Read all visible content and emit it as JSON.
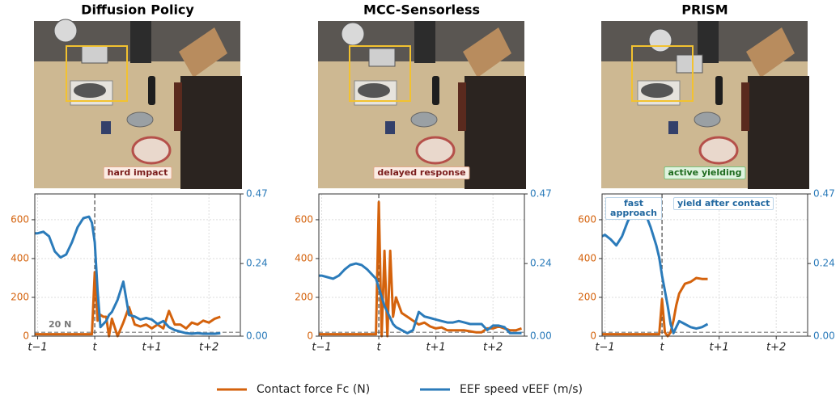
{
  "chart_data": [
    {
      "type": "line",
      "title": "Diffusion Policy",
      "image_label": "hard impact",
      "image_label_color": "#7a1c1c",
      "x": [
        -1.05,
        -1.0,
        -0.9,
        -0.8,
        -0.7,
        -0.6,
        -0.5,
        -0.4,
        -0.3,
        -0.2,
        -0.1,
        -0.05,
        0,
        0.05,
        0.1,
        0.15,
        0.2,
        0.25,
        0.3,
        0.4,
        0.5,
        0.6,
        0.7,
        0.8,
        0.9,
        1.0,
        1.1,
        1.2,
        1.3,
        1.4,
        1.5,
        1.6,
        1.7,
        1.8,
        1.9,
        2.0,
        2.1,
        2.2,
        2.3,
        2.4,
        2.5
      ],
      "series": [
        {
          "name": "Contact force Fc (N)",
          "color": "#d4620c",
          "axis": "y",
          "values": [
            10,
            10,
            10,
            10,
            10,
            10,
            10,
            10,
            10,
            10,
            10,
            10,
            330,
            80,
            110,
            100,
            100,
            0,
            90,
            0,
            70,
            150,
            60,
            50,
            60,
            40,
            60,
            40,
            130,
            60,
            60,
            40,
            70,
            60,
            80,
            70,
            90,
            100,
            null,
            null,
            null
          ]
        },
        {
          "name": "EEF speed vEEF (m/s)",
          "color": "#2b7bba",
          "axis": "y2",
          "values": [
            0.34,
            0.34,
            0.345,
            0.33,
            0.28,
            0.26,
            0.27,
            0.31,
            0.36,
            0.39,
            0.395,
            0.375,
            0.31,
            0.15,
            0.03,
            0.04,
            0.05,
            0.07,
            0.08,
            0.12,
            0.18,
            0.07,
            0.065,
            0.055,
            0.06,
            0.055,
            0.04,
            0.05,
            0.03,
            0.02,
            0.015,
            0.01,
            0.008,
            0.01,
            0.008,
            0.008,
            0.008,
            0.01,
            null,
            null,
            null
          ]
        }
      ],
      "threshold": 20,
      "threshold_label": "20 N",
      "event_x": 0,
      "xlim": [
        -1.05,
        2.55
      ],
      "xticks": [
        {
          "value": -1,
          "label": "t−1"
        },
        {
          "value": 0,
          "label": "t"
        },
        {
          "value": 1,
          "label": "t+1"
        },
        {
          "value": 2,
          "label": "t+2"
        }
      ],
      "ylim": [
        0,
        733
      ],
      "yticks": [
        0,
        200,
        400,
        600
      ],
      "y2lim": [
        0,
        0.47
      ],
      "y2ticks": [
        {
          "value": 0,
          "label": "0.00"
        },
        0.24,
        0.47
      ],
      "grid": true
    },
    {
      "type": "line",
      "title": "MCC-Sensorless",
      "image_label": "delayed response",
      "image_label_color": "#7a1c1c",
      "x": [
        -1.05,
        -1.0,
        -0.9,
        -0.8,
        -0.7,
        -0.6,
        -0.5,
        -0.4,
        -0.3,
        -0.2,
        -0.1,
        -0.05,
        0,
        0.05,
        0.1,
        0.15,
        0.2,
        0.25,
        0.3,
        0.4,
        0.5,
        0.6,
        0.7,
        0.8,
        0.9,
        1.0,
        1.1,
        1.2,
        1.3,
        1.4,
        1.5,
        1.6,
        1.7,
        1.8,
        1.9,
        2.0,
        2.1,
        2.2,
        2.3,
        2.4,
        2.5
      ],
      "series": [
        {
          "color": "#d4620c",
          "axis": "y",
          "values": [
            10,
            10,
            10,
            10,
            10,
            10,
            10,
            10,
            10,
            10,
            10,
            10,
            690,
            0,
            440,
            0,
            440,
            100,
            200,
            120,
            100,
            80,
            60,
            70,
            50,
            40,
            45,
            30,
            30,
            30,
            30,
            25,
            20,
            20,
            40,
            40,
            50,
            40,
            30,
            30,
            40
          ]
        },
        {
          "color": "#2b7bba",
          "axis": "y2",
          "values": [
            0.2,
            0.2,
            0.195,
            0.19,
            0.2,
            0.22,
            0.235,
            0.24,
            0.235,
            0.22,
            0.2,
            0.19,
            0.16,
            0.13,
            0.1,
            0.08,
            0.06,
            0.04,
            0.03,
            0.02,
            0.01,
            0.02,
            0.08,
            0.065,
            0.06,
            0.055,
            0.05,
            0.045,
            0.045,
            0.05,
            0.045,
            0.04,
            0.04,
            0.04,
            0.02,
            0.035,
            0.035,
            0.03,
            0.01,
            0.01,
            0.01
          ]
        }
      ],
      "threshold": 20,
      "event_x": 0,
      "xlim": [
        -1.05,
        2.55
      ],
      "xticks": [
        {
          "value": -1,
          "label": "t−1"
        },
        {
          "value": 0,
          "label": "t"
        },
        {
          "value": 1,
          "label": "t+1"
        },
        {
          "value": 2,
          "label": "t+2"
        }
      ],
      "ylim": [
        0,
        733
      ],
      "yticks": [
        0,
        200,
        400,
        600
      ],
      "y2lim": [
        0,
        0.47
      ],
      "y2ticks": [
        {
          "value": 0,
          "label": "0.00"
        },
        0.24,
        0.47
      ],
      "grid": true
    },
    {
      "type": "line",
      "title": "PRISM",
      "image_label": "active yielding",
      "image_label_color": "#1e6b1e",
      "annotations": [
        "fast approach",
        "yield after contact"
      ],
      "x": [
        -1.05,
        -1.0,
        -0.9,
        -0.8,
        -0.7,
        -0.6,
        -0.5,
        -0.4,
        -0.3,
        -0.2,
        -0.1,
        -0.05,
        0,
        0.05,
        0.1,
        0.15,
        0.2,
        0.25,
        0.3,
        0.4,
        0.5,
        0.6,
        0.7,
        0.8,
        0.9,
        1.0,
        1.1,
        1.2,
        1.3,
        1.4,
        1.5,
        1.6,
        1.7,
        1.8,
        1.9,
        2.0,
        2.1,
        2.2,
        2.3,
        2.4,
        2.5
      ],
      "series": [
        {
          "color": "#d4620c",
          "axis": "y",
          "values": [
            10,
            10,
            10,
            10,
            10,
            10,
            10,
            10,
            10,
            10,
            10,
            10,
            190,
            20,
            0,
            20,
            80,
            160,
            220,
            270,
            280,
            300,
            295,
            295,
            null,
            null,
            null,
            null,
            null,
            null,
            null,
            null,
            null,
            null,
            null,
            null,
            null,
            null,
            null,
            null,
            null
          ]
        },
        {
          "color": "#2b7bba",
          "axis": "y2",
          "values": [
            0.33,
            0.335,
            0.32,
            0.3,
            0.33,
            0.38,
            0.41,
            0.43,
            0.41,
            0.36,
            0.3,
            0.26,
            0.2,
            0.15,
            0.1,
            0.04,
            0.01,
            0.03,
            0.05,
            0.04,
            0.03,
            0.025,
            0.03,
            0.04,
            null,
            null,
            null,
            null,
            null,
            null,
            null,
            null,
            null,
            null,
            null,
            null,
            null,
            null,
            null,
            null,
            null
          ]
        }
      ],
      "threshold": 20,
      "event_x": 0,
      "xlim": [
        -1.05,
        2.55
      ],
      "xticks": [
        {
          "value": -1,
          "label": "t−1"
        },
        {
          "value": 0,
          "label": "t"
        },
        {
          "value": 1,
          "label": "t+1"
        },
        {
          "value": 2,
          "label": "t+2"
        }
      ],
      "ylim": [
        0,
        733
      ],
      "yticks": [
        0,
        200,
        400,
        600
      ],
      "y2lim": [
        0,
        0.47
      ],
      "y2ticks": [
        {
          "value": 0,
          "label": "0.00"
        },
        0.24,
        0.47
      ],
      "grid": true
    }
  ]
}
